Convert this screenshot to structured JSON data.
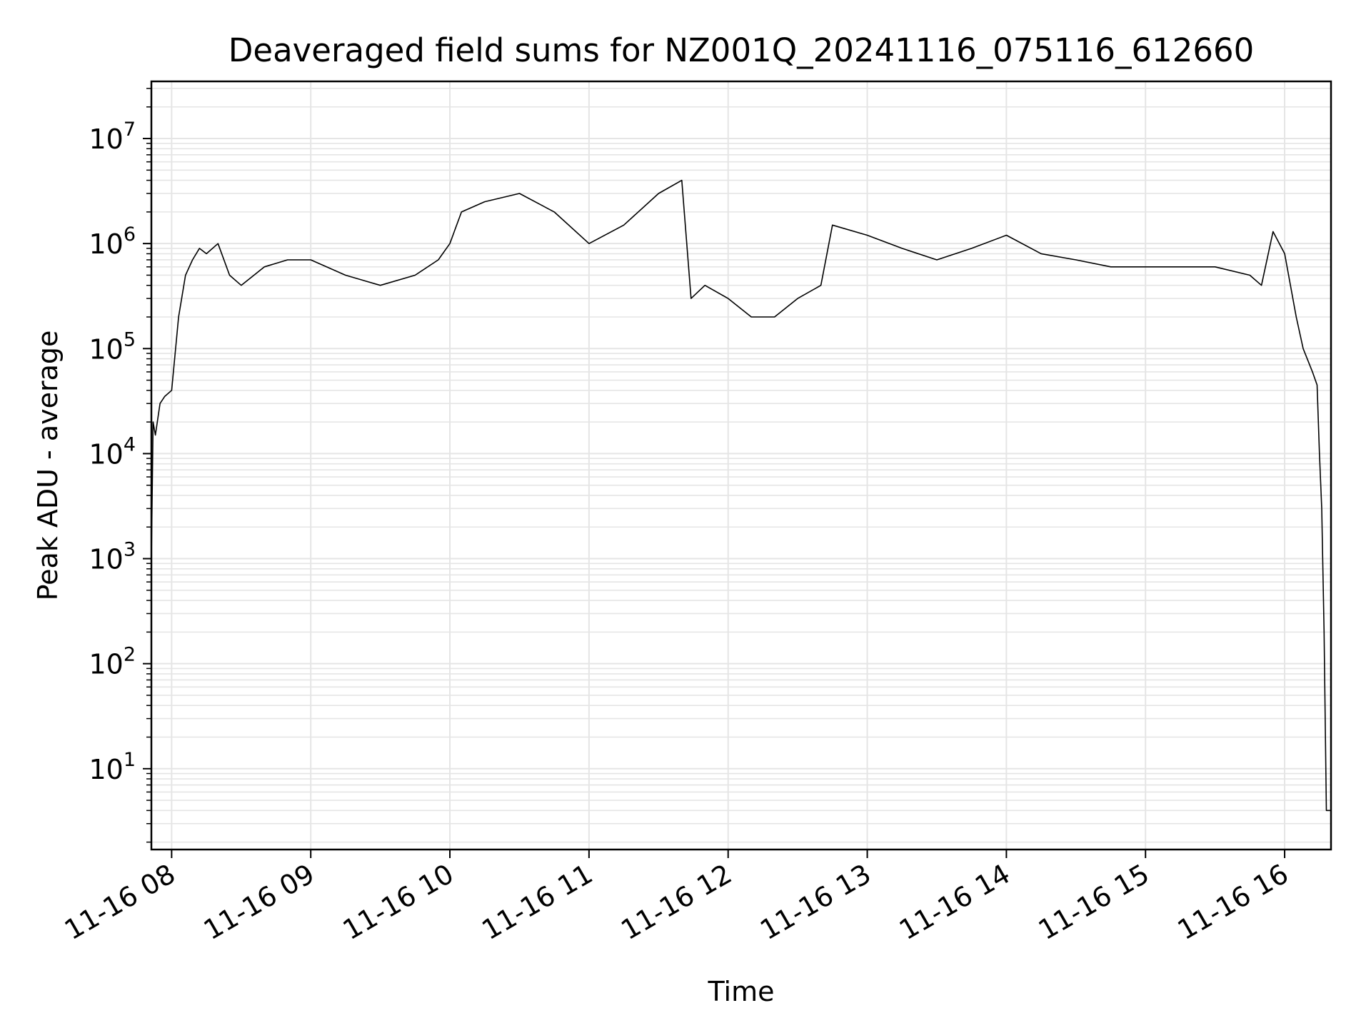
{
  "chart_data": {
    "type": "line",
    "title": "Deaveraged field sums for NZ001Q_20241116_075116_612660",
    "xlabel": "Time",
    "ylabel": "Peak ADU - average",
    "yscale": "log",
    "ylim": [
      1.7,
      35000000
    ],
    "xlim": [
      "2024-11-16 07:51:16",
      "2024-11-16 16:20:00"
    ],
    "grid": true,
    "grid_minor": true,
    "line_color": "#000000",
    "grid_color": "#e5e5e5",
    "x_ticks": [
      {
        "value": "2024-11-16 08:00",
        "label": "11-16 08"
      },
      {
        "value": "2024-11-16 09:00",
        "label": "11-16 09"
      },
      {
        "value": "2024-11-16 10:00",
        "label": "11-16 10"
      },
      {
        "value": "2024-11-16 11:00",
        "label": "11-16 11"
      },
      {
        "value": "2024-11-16 12:00",
        "label": "11-16 12"
      },
      {
        "value": "2024-11-16 13:00",
        "label": "11-16 13"
      },
      {
        "value": "2024-11-16 14:00",
        "label": "11-16 14"
      },
      {
        "value": "2024-11-16 15:00",
        "label": "11-16 15"
      },
      {
        "value": "2024-11-16 16:00",
        "label": "11-16 16"
      }
    ],
    "y_ticks": [
      {
        "value": 10,
        "base": "10",
        "exp": "1"
      },
      {
        "value": 100,
        "base": "10",
        "exp": "2"
      },
      {
        "value": 1000,
        "base": "10",
        "exp": "3"
      },
      {
        "value": 10000,
        "base": "10",
        "exp": "4"
      },
      {
        "value": 100000,
        "base": "10",
        "exp": "5"
      },
      {
        "value": 1000000,
        "base": "10",
        "exp": "6"
      },
      {
        "value": 10000000,
        "base": "10",
        "exp": "7"
      }
    ],
    "series": [
      {
        "x": [
          "2024-11-16 07:51:16",
          "2024-11-16 07:52",
          "2024-11-16 07:53",
          "2024-11-16 07:55",
          "2024-11-16 07:57",
          "2024-11-16 08:00",
          "2024-11-16 08:03",
          "2024-11-16 08:06",
          "2024-11-16 08:09",
          "2024-11-16 08:12",
          "2024-11-16 08:15",
          "2024-11-16 08:20",
          "2024-11-16 08:25",
          "2024-11-16 08:30",
          "2024-11-16 08:40",
          "2024-11-16 08:50",
          "2024-11-16 09:00",
          "2024-11-16 09:15",
          "2024-11-16 09:30",
          "2024-11-16 09:45",
          "2024-11-16 09:55",
          "2024-11-16 10:00",
          "2024-11-16 10:05",
          "2024-11-16 10:15",
          "2024-11-16 10:30",
          "2024-11-16 10:45",
          "2024-11-16 11:00",
          "2024-11-16 11:15",
          "2024-11-16 11:30",
          "2024-11-16 11:40",
          "2024-11-16 11:44",
          "2024-11-16 11:50",
          "2024-11-16 12:00",
          "2024-11-16 12:10",
          "2024-11-16 12:20",
          "2024-11-16 12:30",
          "2024-11-16 12:40",
          "2024-11-16 12:45",
          "2024-11-16 13:00",
          "2024-11-16 13:15",
          "2024-11-16 13:30",
          "2024-11-16 13:45",
          "2024-11-16 14:00",
          "2024-11-16 14:15",
          "2024-11-16 14:30",
          "2024-11-16 14:45",
          "2024-11-16 15:00",
          "2024-11-16 15:15",
          "2024-11-16 15:30",
          "2024-11-16 15:45",
          "2024-11-16 15:50",
          "2024-11-16 15:55",
          "2024-11-16 16:00",
          "2024-11-16 16:05",
          "2024-11-16 16:08",
          "2024-11-16 16:12",
          "2024-11-16 16:14",
          "2024-11-16 16:15",
          "2024-11-16 16:16",
          "2024-11-16 16:17",
          "2024-11-16 16:18",
          "2024-11-16 16:19",
          "2024-11-16 16:20"
        ],
        "y": [
          1000,
          20000,
          15000,
          30000,
          35000,
          40000,
          200000,
          500000,
          700000,
          900000,
          800000,
          1000000,
          500000,
          400000,
          600000,
          700000,
          700000,
          500000,
          400000,
          500000,
          700000,
          1000000,
          2000000,
          2500000,
          3000000,
          2000000,
          1000000,
          1500000,
          3000000,
          4000000,
          300000,
          400000,
          300000,
          200000,
          200000,
          300000,
          400000,
          1500000,
          1200000,
          900000,
          700000,
          900000,
          1200000,
          800000,
          700000,
          600000,
          600000,
          600000,
          600000,
          500000,
          400000,
          1300000,
          800000,
          200000,
          100000,
          60000,
          45000,
          10000,
          3000,
          200,
          4,
          4,
          4
        ]
      }
    ]
  }
}
